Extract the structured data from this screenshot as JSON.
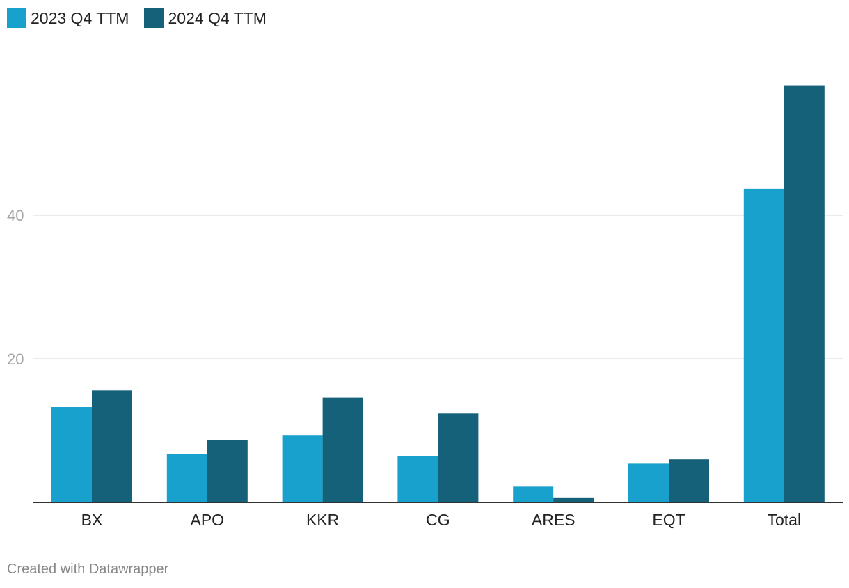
{
  "colors": {
    "series_2023": "#18a1cd",
    "series_2024": "#16617a",
    "grid": "#e3e3e3",
    "axis": "#333333",
    "tick_text": "#a6a6a6",
    "category_text": "#222222"
  },
  "legend": [
    {
      "label": "2023 Q4 TTM"
    },
    {
      "label": "2024 Q4 TTM"
    }
  ],
  "footer": {
    "text": "Created with Datawrapper"
  },
  "chart_data": {
    "type": "bar",
    "categories": [
      "BX",
      "APO",
      "KKR",
      "CG",
      "ARES",
      "EQT",
      "Total"
    ],
    "series": [
      {
        "name": "2023 Q4 TTM",
        "values": [
          13.3,
          6.7,
          9.3,
          6.5,
          2.2,
          5.4,
          43.7
        ]
      },
      {
        "name": "2024 Q4 TTM",
        "values": [
          15.6,
          8.7,
          14.6,
          12.4,
          0.6,
          6.0,
          58.1
        ]
      }
    ],
    "y_ticks": [
      20,
      40
    ],
    "ylim": [
      0,
      60
    ],
    "grid": true,
    "legend_position": "top-left"
  }
}
